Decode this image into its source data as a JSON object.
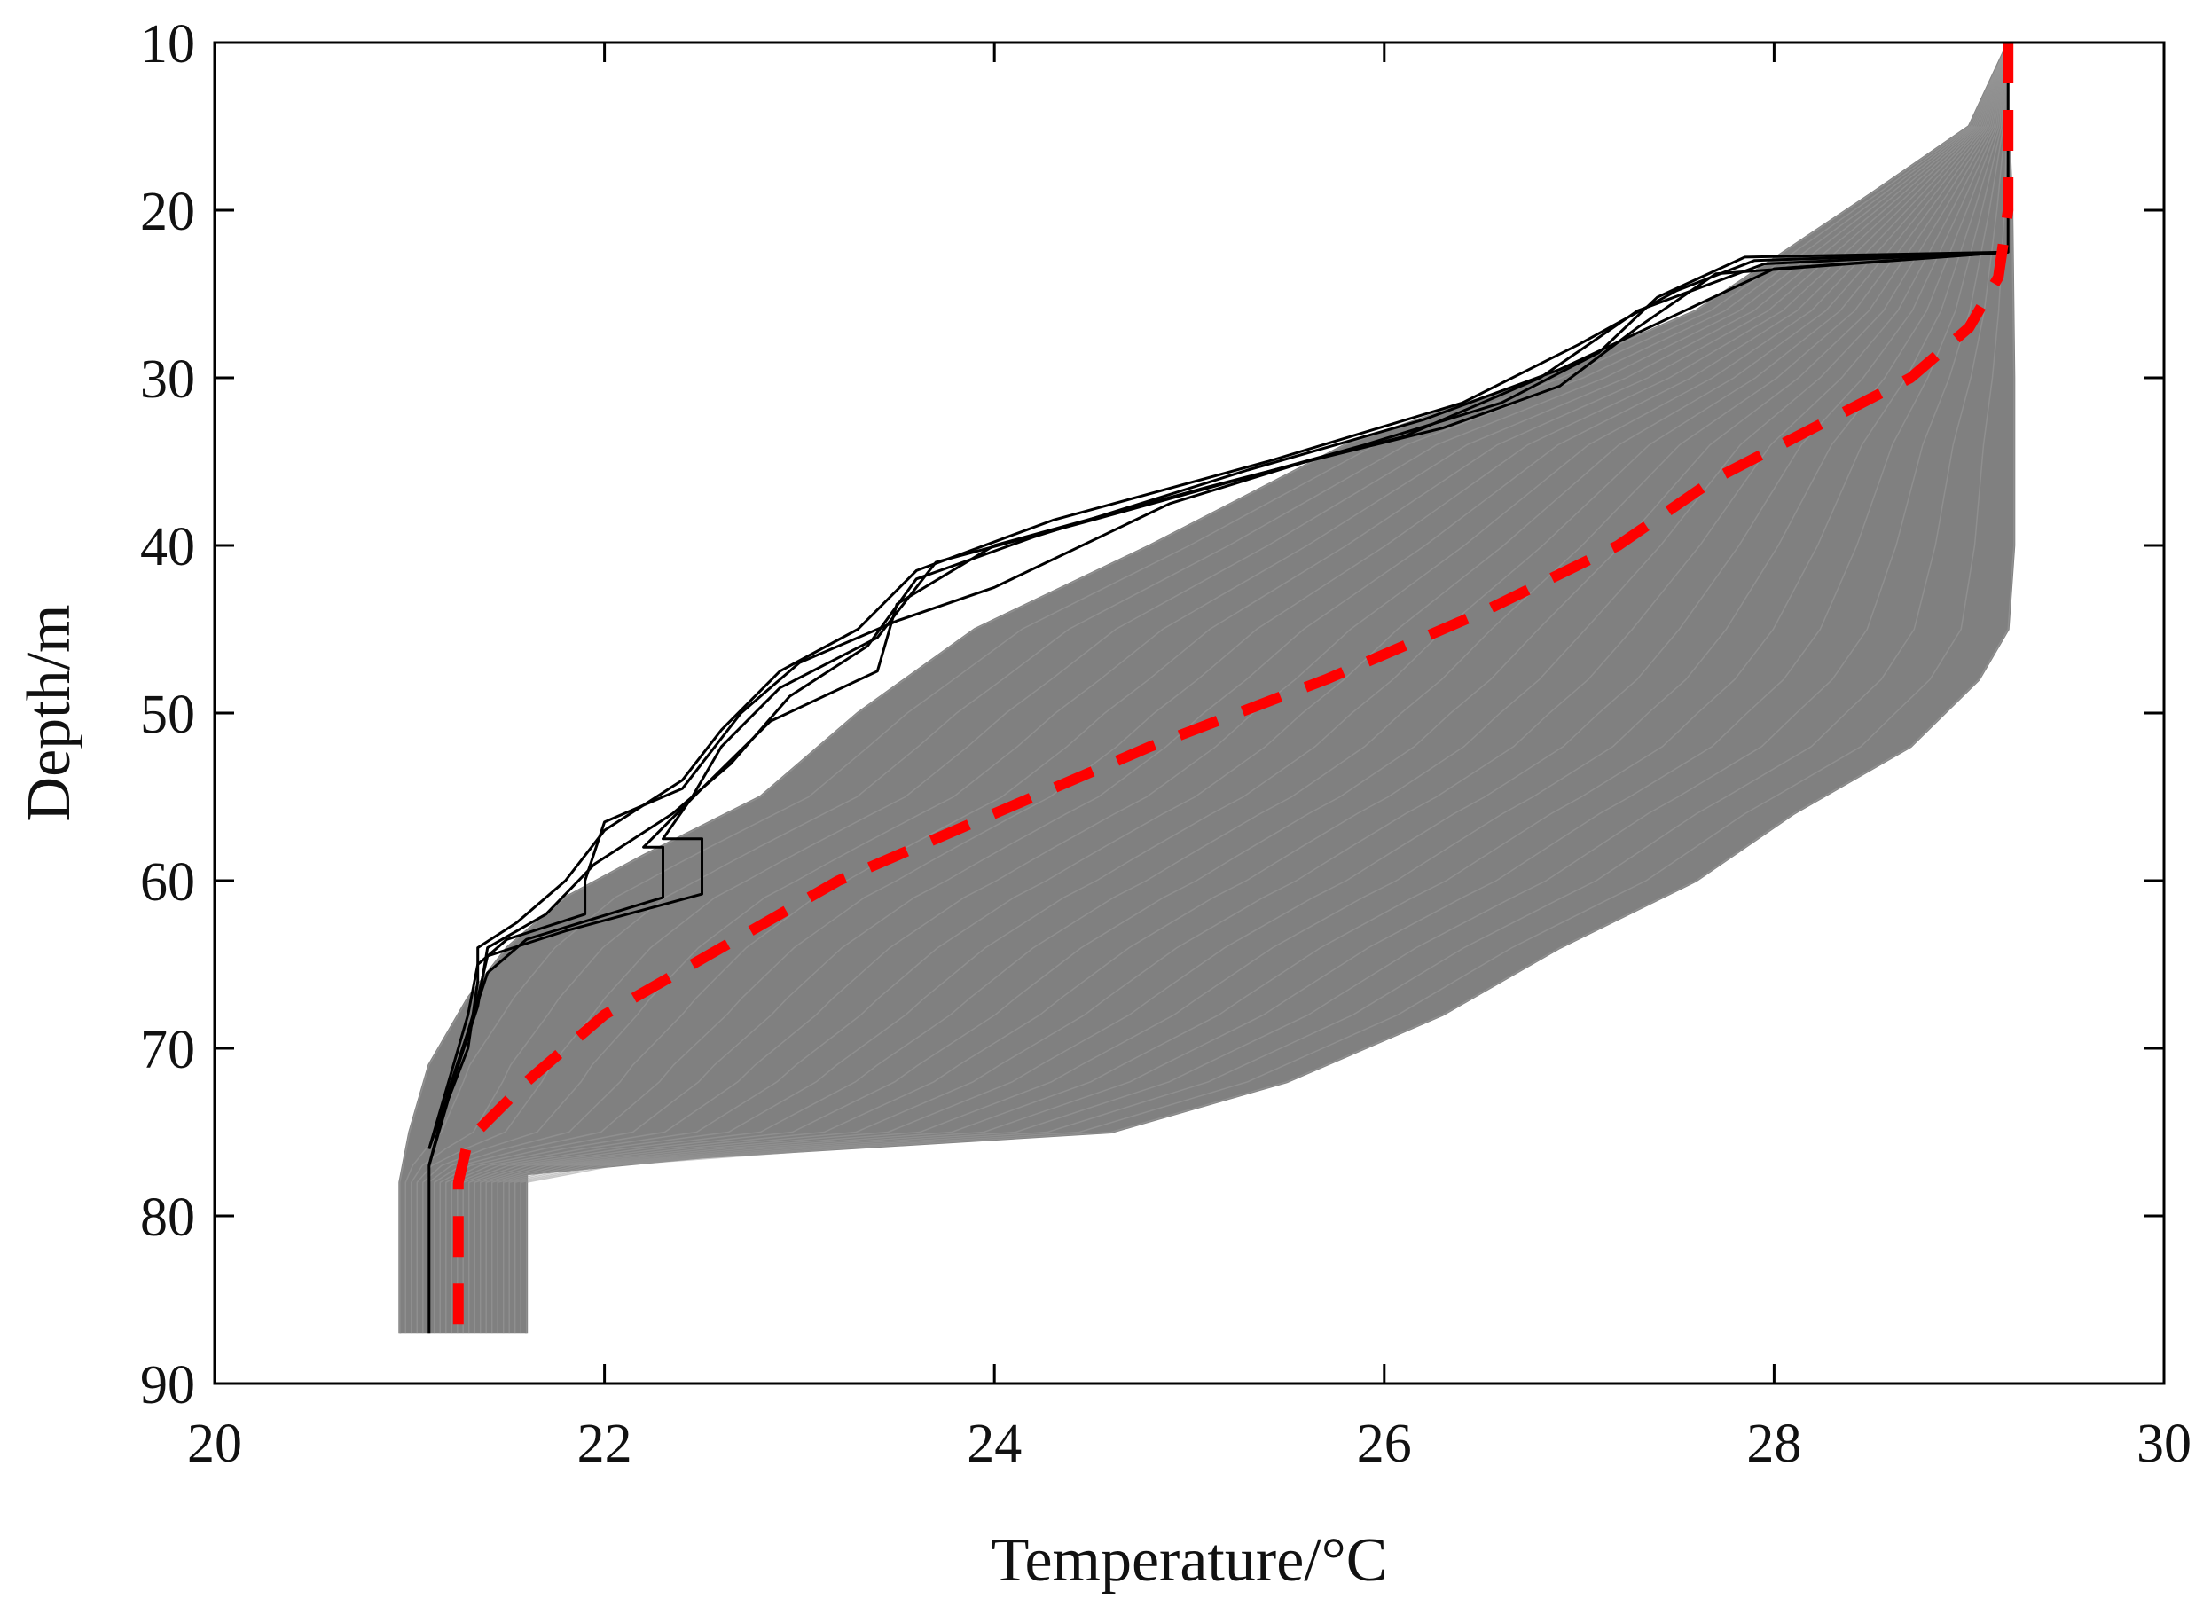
{
  "chart_data": {
    "type": "line",
    "title": "",
    "xlabel": "Temperature/°C",
    "ylabel": "Depth/m",
    "xlim": [
      20,
      30
    ],
    "ylim": [
      10,
      90
    ],
    "y_reversed": true,
    "x_ticks": [
      20,
      22,
      24,
      26,
      28,
      30
    ],
    "y_ticks": [
      10,
      20,
      30,
      40,
      50,
      60,
      70,
      80,
      90
    ],
    "x_tick_labels": [
      "20",
      "22",
      "24",
      "26",
      "28",
      "30"
    ],
    "y_tick_labels": [
      "10",
      "20",
      "30",
      "40",
      "50",
      "60",
      "70",
      "80",
      "90"
    ],
    "grid": false,
    "legend": "none",
    "colors": {
      "ensemble": "#808080",
      "selected": "#000000",
      "mean": "#ff0000",
      "axes": "#000000"
    },
    "ensemble_envelope": {
      "warm_edge": [
        [
          29.2,
          10
        ],
        [
          29.2,
          14
        ],
        [
          29.22,
          20
        ],
        [
          29.23,
          30
        ],
        [
          29.23,
          40
        ],
        [
          29.2,
          45
        ],
        [
          29.05,
          48
        ],
        [
          28.7,
          52
        ],
        [
          28.1,
          56
        ],
        [
          27.6,
          60
        ],
        [
          26.9,
          64
        ],
        [
          26.3,
          68
        ],
        [
          25.5,
          72
        ],
        [
          24.6,
          75
        ],
        [
          22.5,
          76.5
        ],
        [
          21.6,
          77.5
        ],
        [
          21.6,
          87
        ]
      ],
      "cold_edge": [
        [
          20.95,
          87
        ],
        [
          20.95,
          78
        ],
        [
          21.0,
          75
        ],
        [
          21.1,
          71
        ],
        [
          21.3,
          67
        ],
        [
          21.5,
          64
        ],
        [
          21.8,
          61
        ],
        [
          22.2,
          58.5
        ],
        [
          22.8,
          55
        ],
        [
          23.3,
          50
        ],
        [
          23.9,
          45
        ],
        [
          24.8,
          40
        ],
        [
          25.8,
          34
        ],
        [
          26.8,
          30
        ],
        [
          27.6,
          26
        ],
        [
          28.5,
          19
        ],
        [
          29.0,
          15
        ],
        [
          29.2,
          10
        ]
      ]
    },
    "series": [
      {
        "name": "",
        "style": "dashed",
        "color": "#ff0000",
        "points": [
          [
            29.2,
            10
          ],
          [
            29.2,
            15
          ],
          [
            29.2,
            20
          ],
          [
            29.15,
            24
          ],
          [
            29.0,
            27
          ],
          [
            28.7,
            30
          ],
          [
            28.2,
            33
          ],
          [
            27.7,
            36
          ],
          [
            27.2,
            40
          ],
          [
            26.5,
            44
          ],
          [
            25.7,
            48
          ],
          [
            24.8,
            52
          ],
          [
            24.0,
            56
          ],
          [
            23.2,
            60
          ],
          [
            22.6,
            64
          ],
          [
            22.0,
            68
          ],
          [
            21.6,
            72
          ],
          [
            21.3,
            75.5
          ],
          [
            21.25,
            78
          ],
          [
            21.25,
            87
          ]
        ]
      },
      {
        "name": "",
        "style": "solid",
        "color": "#000000",
        "points": [
          [
            29.2,
            10
          ],
          [
            29.2,
            22.5
          ],
          [
            27.9,
            23
          ],
          [
            27.5,
            24.8
          ],
          [
            27.0,
            28
          ],
          [
            26.4,
            31.5
          ],
          [
            25.4,
            35
          ],
          [
            24.3,
            38.5
          ],
          [
            23.6,
            41.5
          ],
          [
            23.3,
            45
          ],
          [
            22.9,
            47.5
          ],
          [
            22.6,
            51
          ],
          [
            22.4,
            54
          ],
          [
            22.0,
            57
          ],
          [
            21.8,
            60
          ],
          [
            21.55,
            62.5
          ],
          [
            21.35,
            64
          ],
          [
            21.35,
            66
          ],
          [
            21.3,
            70
          ],
          [
            21.2,
            73
          ],
          [
            21.1,
            77
          ],
          [
            21.1,
            87
          ]
        ]
      },
      {
        "name": "",
        "style": "solid",
        "color": "#000000",
        "points": [
          [
            29.2,
            22.5
          ],
          [
            27.85,
            22.8
          ],
          [
            27.4,
            25.2
          ],
          [
            27.1,
            28.5
          ],
          [
            26.6,
            31.5
          ],
          [
            25.9,
            34
          ],
          [
            24.5,
            38.5
          ],
          [
            23.7,
            41
          ],
          [
            23.4,
            45.5
          ],
          [
            22.9,
            48.5
          ],
          [
            22.6,
            52
          ],
          [
            22.45,
            55
          ],
          [
            22.3,
            57.5
          ],
          [
            22.5,
            57.5
          ],
          [
            22.5,
            60.8
          ],
          [
            21.8,
            63
          ],
          [
            21.4,
            64.5
          ],
          [
            21.35,
            67
          ],
          [
            21.25,
            71
          ],
          [
            21.1,
            76
          ]
        ]
      },
      {
        "name": "",
        "style": "solid",
        "color": "#000000",
        "points": [
          [
            29.2,
            22.5
          ],
          [
            27.95,
            23.2
          ],
          [
            27.3,
            26
          ],
          [
            26.8,
            30
          ],
          [
            26.1,
            33.5
          ],
          [
            25.1,
            36.5
          ],
          [
            24.0,
            40
          ],
          [
            23.5,
            43.5
          ],
          [
            23.4,
            47.5
          ],
          [
            22.85,
            50.5
          ],
          [
            22.5,
            54.5
          ],
          [
            22.2,
            58
          ],
          [
            22.3,
            58
          ],
          [
            22.3,
            61
          ],
          [
            21.6,
            63.5
          ],
          [
            21.4,
            65.5
          ],
          [
            21.3,
            69
          ],
          [
            21.2,
            72.5
          ],
          [
            21.1,
            77
          ]
        ]
      },
      {
        "name": "",
        "style": "solid",
        "color": "#000000",
        "points": [
          [
            29.2,
            22.5
          ],
          [
            27.7,
            23.8
          ],
          [
            27.3,
            27
          ],
          [
            26.9,
            30.5
          ],
          [
            26.3,
            33
          ],
          [
            25.6,
            35
          ],
          [
            24.9,
            37.5
          ],
          [
            24.0,
            42.5
          ],
          [
            23.5,
            44.5
          ],
          [
            23.0,
            47
          ],
          [
            22.7,
            50
          ],
          [
            22.4,
            54.5
          ],
          [
            22.0,
            56.5
          ],
          [
            21.9,
            60
          ],
          [
            21.9,
            62
          ],
          [
            21.5,
            63.5
          ],
          [
            21.35,
            65
          ],
          [
            21.3,
            68
          ],
          [
            21.2,
            72
          ],
          [
            21.1,
            76
          ]
        ]
      },
      {
        "name": "",
        "style": "solid",
        "color": "#000000",
        "points": [
          [
            29.2,
            22.5
          ],
          [
            28.0,
            23.5
          ],
          [
            27.45,
            26.5
          ],
          [
            26.9,
            29.5
          ],
          [
            26.2,
            32.5
          ],
          [
            25.3,
            35.5
          ],
          [
            24.2,
            39.5
          ],
          [
            23.6,
            42
          ],
          [
            23.35,
            46
          ],
          [
            22.95,
            49
          ],
          [
            22.65,
            53
          ],
          [
            22.35,
            56
          ],
          [
            21.95,
            59
          ],
          [
            21.7,
            62
          ],
          [
            21.4,
            64
          ],
          [
            21.35,
            67.5
          ],
          [
            21.25,
            71
          ],
          [
            21.15,
            74.5
          ]
        ]
      }
    ]
  }
}
